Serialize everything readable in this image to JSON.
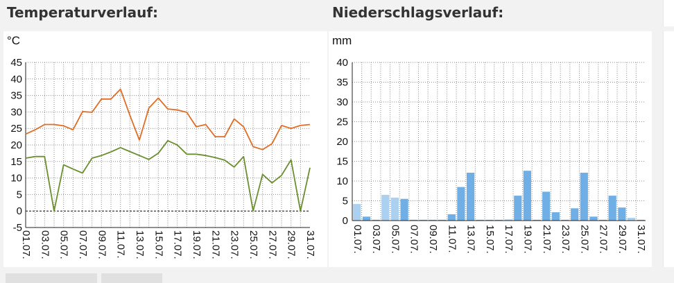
{
  "headings": {
    "temperature": "Temperaturverlauf:",
    "precipitation": "Niederschlagsverlauf:"
  },
  "chart_data": [
    {
      "type": "line",
      "unit_label": "°C",
      "x": [
        "01.07.",
        "02.07.",
        "03.07.",
        "04.07.",
        "05.07.",
        "06.07.",
        "07.07.",
        "08.07.",
        "09.07.",
        "10.07.",
        "11.07.",
        "12.07.",
        "13.07.",
        "14.07.",
        "15.07.",
        "16.07.",
        "17.07.",
        "18.07.",
        "19.07.",
        "20.07.",
        "21.07.",
        "22.07.",
        "23.07.",
        "24.07.",
        "25.07.",
        "26.07.",
        "27.07.",
        "28.07.",
        "29.07.",
        "30.07.",
        "31.07."
      ],
      "x_tick_labels": [
        "01.07.",
        "03.07.",
        "05.07.",
        "07.07.",
        "09.07.",
        "11.07.",
        "13.07.",
        "15.07.",
        "17.07.",
        "19.07.",
        "21.07.",
        "23.07.",
        "25.07.",
        "27.07.",
        "29.07.",
        "31.07."
      ],
      "series": [
        {
          "color": "#e06d23",
          "values": [
            23.3,
            24.6,
            26.2,
            26.2,
            25.8,
            24.6,
            30.1,
            29.9,
            33.9,
            33.9,
            36.9,
            29.0,
            21.5,
            31.2,
            34.2,
            30.9,
            30.6,
            29.9,
            25.5,
            26.2,
            22.5,
            22.5,
            27.9,
            25.5,
            19.5,
            18.6,
            20.4,
            25.9,
            25.0,
            25.9,
            26.2
          ]
        },
        {
          "color": "#6a8e2e",
          "values": [
            16.0,
            16.5,
            16.5,
            0.0,
            14.0,
            12.7,
            11.5,
            16.0,
            16.8,
            17.9,
            19.2,
            18.0,
            16.8,
            15.6,
            17.5,
            21.3,
            20.0,
            17.2,
            17.2,
            16.8,
            16.2,
            15.4,
            13.3,
            16.5,
            0.0,
            11.1,
            8.5,
            10.8,
            15.5,
            0.0,
            13.1
          ]
        }
      ],
      "ylim": [
        -5,
        45
      ],
      "yticks": [
        -5,
        0,
        5,
        10,
        15,
        20,
        25,
        30,
        35,
        40,
        45
      ],
      "grid": true,
      "zero_line": "dashed"
    },
    {
      "type": "bar",
      "unit_label": "mm",
      "categories": [
        "01.07.",
        "02.07.",
        "03.07.",
        "04.07.",
        "05.07.",
        "06.07.",
        "07.07.",
        "08.07.",
        "09.07.",
        "10.07.",
        "11.07.",
        "12.07.",
        "13.07.",
        "14.07.",
        "15.07.",
        "16.07.",
        "17.07.",
        "18.07.",
        "19.07.",
        "20.07.",
        "21.07.",
        "22.07.",
        "23.07.",
        "24.07.",
        "25.07.",
        "26.07.",
        "27.07.",
        "28.07.",
        "29.07.",
        "30.07.",
        "31.07."
      ],
      "x_tick_labels": [
        "01.07.",
        "03.07.",
        "05.07.",
        "07.07.",
        "09.07.",
        "11.07.",
        "13.07.",
        "15.07.",
        "17.07.",
        "19.07.",
        "21.07.",
        "23.07.",
        "25.07.",
        "27.07.",
        "29.07.",
        "31.07."
      ],
      "values": [
        4.2,
        1.0,
        0.2,
        6.5,
        5.8,
        5.5,
        0.2,
        0.2,
        0.2,
        0.2,
        1.6,
        8.5,
        12.1,
        0.2,
        0.2,
        0.2,
        0.3,
        6.3,
        12.6,
        0.2,
        7.3,
        2.1,
        0.2,
        3.1,
        12.1,
        1.0,
        0.2,
        6.3,
        3.3,
        0.7,
        0.2
      ],
      "shade": [
        "light",
        "dark",
        "dark",
        "light",
        "light",
        "dark",
        "dark",
        "dark",
        "dark",
        "dark",
        "dark",
        "dark",
        "dark",
        "dark",
        "dark",
        "dark",
        "light",
        "dark",
        "dark",
        "dark",
        "dark",
        "dark",
        "dark",
        "dark",
        "dark",
        "dark",
        "dark",
        "dark",
        "dark",
        "light",
        "dark"
      ],
      "colors": {
        "dark": "#6fafe6",
        "light": "#abd0f0"
      },
      "ylim": [
        0,
        40
      ],
      "yticks": [
        0,
        5,
        10,
        15,
        20,
        25,
        30,
        35,
        40
      ],
      "grid": true
    }
  ]
}
